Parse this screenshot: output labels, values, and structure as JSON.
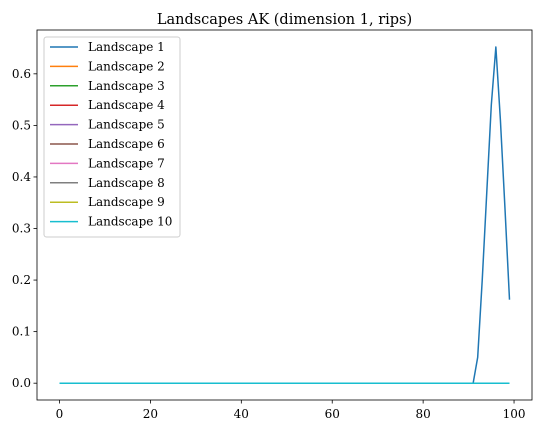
{
  "chart_data": {
    "type": "line",
    "title": "Landscapes AK (dimension 1, rips)",
    "xlabel": "",
    "ylabel": "",
    "xlim": [
      -4.95,
      103.95
    ],
    "ylim": [
      -0.0326,
      0.685
    ],
    "xticks": [
      0,
      20,
      40,
      60,
      80,
      100
    ],
    "yticks": [
      0.0,
      0.1,
      0.2,
      0.3,
      0.4,
      0.5,
      0.6
    ],
    "ytick_labels": [
      "0.0",
      "0.1",
      "0.2",
      "0.3",
      "0.4",
      "0.5",
      "0.6"
    ],
    "grid": false,
    "legend_position": "upper-left",
    "x_range": [
      0,
      99
    ],
    "series": [
      {
        "name": "Landscape 1",
        "color": "#1f77b4",
        "points": [
          [
            0,
            0
          ],
          [
            91,
            0
          ],
          [
            92,
            0.05
          ],
          [
            93,
            0.2
          ],
          [
            94,
            0.37
          ],
          [
            95,
            0.54
          ],
          [
            96,
            0.652
          ],
          [
            97,
            0.51
          ],
          [
            98,
            0.34
          ],
          [
            99,
            0.162
          ]
        ]
      },
      {
        "name": "Landscape 2",
        "color": "#ff7f0e",
        "points": [
          [
            0,
            0
          ],
          [
            99,
            0
          ]
        ]
      },
      {
        "name": "Landscape 3",
        "color": "#2ca02c",
        "points": [
          [
            0,
            0
          ],
          [
            99,
            0
          ]
        ]
      },
      {
        "name": "Landscape 4",
        "color": "#d62728",
        "points": [
          [
            0,
            0
          ],
          [
            99,
            0
          ]
        ]
      },
      {
        "name": "Landscape 5",
        "color": "#9467bd",
        "points": [
          [
            0,
            0
          ],
          [
            99,
            0
          ]
        ]
      },
      {
        "name": "Landscape 6",
        "color": "#8c564b",
        "points": [
          [
            0,
            0
          ],
          [
            99,
            0
          ]
        ]
      },
      {
        "name": "Landscape 7",
        "color": "#e377c2",
        "points": [
          [
            0,
            0
          ],
          [
            99,
            0
          ]
        ]
      },
      {
        "name": "Landscape 8",
        "color": "#7f7f7f",
        "points": [
          [
            0,
            0
          ],
          [
            99,
            0
          ]
        ]
      },
      {
        "name": "Landscape 9",
        "color": "#bcbd22",
        "points": [
          [
            0,
            0
          ],
          [
            99,
            0
          ]
        ]
      },
      {
        "name": "Landscape 10",
        "color": "#17becf",
        "points": [
          [
            0,
            0
          ],
          [
            99,
            0
          ]
        ]
      }
    ]
  }
}
